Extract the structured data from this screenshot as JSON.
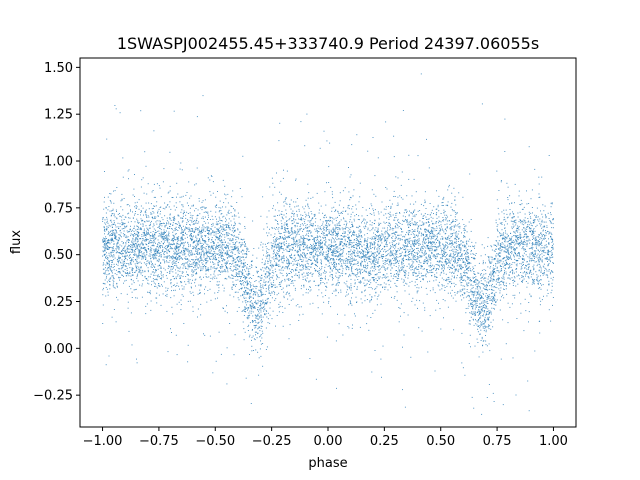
{
  "chart_data": {
    "type": "scatter",
    "title": "1SWASPJ002455.45+333740.9 Period 24397.06055s",
    "xlabel": "phase",
    "ylabel": "flux",
    "xlim": [
      -1.1,
      1.1
    ],
    "ylim": [
      -0.42,
      1.55
    ],
    "xticks": [
      -1.0,
      -0.75,
      -0.5,
      -0.25,
      0.0,
      0.25,
      0.5,
      0.75,
      1.0
    ],
    "xtick_labels": [
      "−1.00",
      "−0.75",
      "−0.50",
      "−0.25",
      "0.00",
      "0.25",
      "0.50",
      "0.75",
      "1.00"
    ],
    "yticks": [
      -0.25,
      0.0,
      0.25,
      0.5,
      0.75,
      1.0,
      1.25,
      1.5
    ],
    "ytick_labels": [
      "−0.25",
      "0.00",
      "0.25",
      "0.50",
      "0.75",
      "1.00",
      "1.25",
      "1.50"
    ],
    "grid": false,
    "marker_color": "#1f77b4",
    "series": [
      {
        "x_range": [
          -1.0,
          1.0
        ],
        "baseline_flux": 0.54,
        "scatter_sd": 0.12,
        "eclipse_phases": [
          -0.32,
          0.68
        ],
        "eclipse_min_flux": 0.22,
        "secondary_dip_phases": [
          0.18
        ],
        "secondary_dip_flux": 0.49
      }
    ]
  }
}
